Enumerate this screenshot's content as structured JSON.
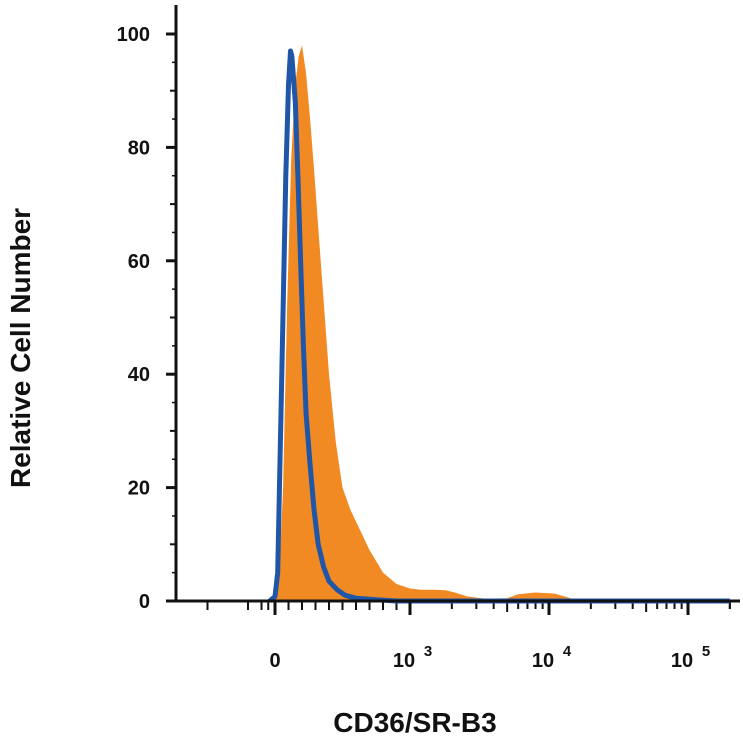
{
  "chart_data": {
    "type": "area",
    "title": "",
    "xlabel": "CD36/SR-B3",
    "ylabel": "Relative Cell Number",
    "x_scale": "biexponential",
    "ylim": [
      0,
      100
    ],
    "y_ticks": [
      {
        "value": 0,
        "label": "0"
      },
      {
        "value": 20,
        "label": "20"
      },
      {
        "value": 40,
        "label": "40"
      },
      {
        "value": 60,
        "label": "60"
      },
      {
        "value": 80,
        "label": "80"
      },
      {
        "value": 100,
        "label": "100"
      }
    ],
    "x_ticks": [
      {
        "value": 0,
        "base": "0",
        "exp": ""
      },
      {
        "value": 1000,
        "base": "10",
        "exp": "3"
      },
      {
        "value": 10000,
        "base": "10",
        "exp": "4"
      },
      {
        "value": 100000,
        "base": "10",
        "exp": "5"
      }
    ],
    "grid": false,
    "legend": "none",
    "series": [
      {
        "style": "filled",
        "color": "#F28A23",
        "points": [
          [
            -40,
            0
          ],
          [
            0,
            0.5
          ],
          [
            30,
            4
          ],
          [
            60,
            20
          ],
          [
            90,
            52
          ],
          [
            120,
            78
          ],
          [
            150,
            91
          ],
          [
            175,
            96
          ],
          [
            200,
            98
          ],
          [
            230,
            93
          ],
          [
            260,
            85
          ],
          [
            290,
            76
          ],
          [
            320,
            66
          ],
          [
            360,
            53
          ],
          [
            400,
            40
          ],
          [
            450,
            28
          ],
          [
            500,
            20
          ],
          [
            560,
            16
          ],
          [
            620,
            13
          ],
          [
            700,
            9
          ],
          [
            800,
            5
          ],
          [
            900,
            3
          ],
          [
            1000,
            2.2
          ],
          [
            1200,
            2
          ],
          [
            1500,
            2
          ],
          [
            1800,
            1.9
          ],
          [
            2100,
            1.5
          ],
          [
            2600,
            0.8
          ],
          [
            3500,
            0.4
          ],
          [
            5000,
            0.5
          ],
          [
            6000,
            1.2
          ],
          [
            8000,
            1.5
          ],
          [
            11000,
            1.3
          ],
          [
            13000,
            0.8
          ],
          [
            15000,
            0.3
          ],
          [
            20000,
            0.1
          ],
          [
            50000,
            0
          ],
          [
            200000,
            0
          ]
        ]
      },
      {
        "style": "line",
        "color": "#1F56A8",
        "points": [
          [
            -40,
            0
          ],
          [
            0,
            0.8
          ],
          [
            20,
            5
          ],
          [
            50,
            40
          ],
          [
            80,
            75
          ],
          [
            100,
            91
          ],
          [
            115,
            97
          ],
          [
            125,
            96
          ],
          [
            150,
            88
          ],
          [
            170,
            75
          ],
          [
            190,
            60
          ],
          [
            210,
            45
          ],
          [
            230,
            33
          ],
          [
            260,
            24
          ],
          [
            290,
            16
          ],
          [
            320,
            10
          ],
          [
            360,
            6
          ],
          [
            400,
            3.5
          ],
          [
            460,
            2
          ],
          [
            520,
            1
          ],
          [
            600,
            0.5
          ],
          [
            700,
            0.3
          ],
          [
            900,
            0
          ],
          [
            200000,
            0
          ]
        ]
      }
    ]
  }
}
